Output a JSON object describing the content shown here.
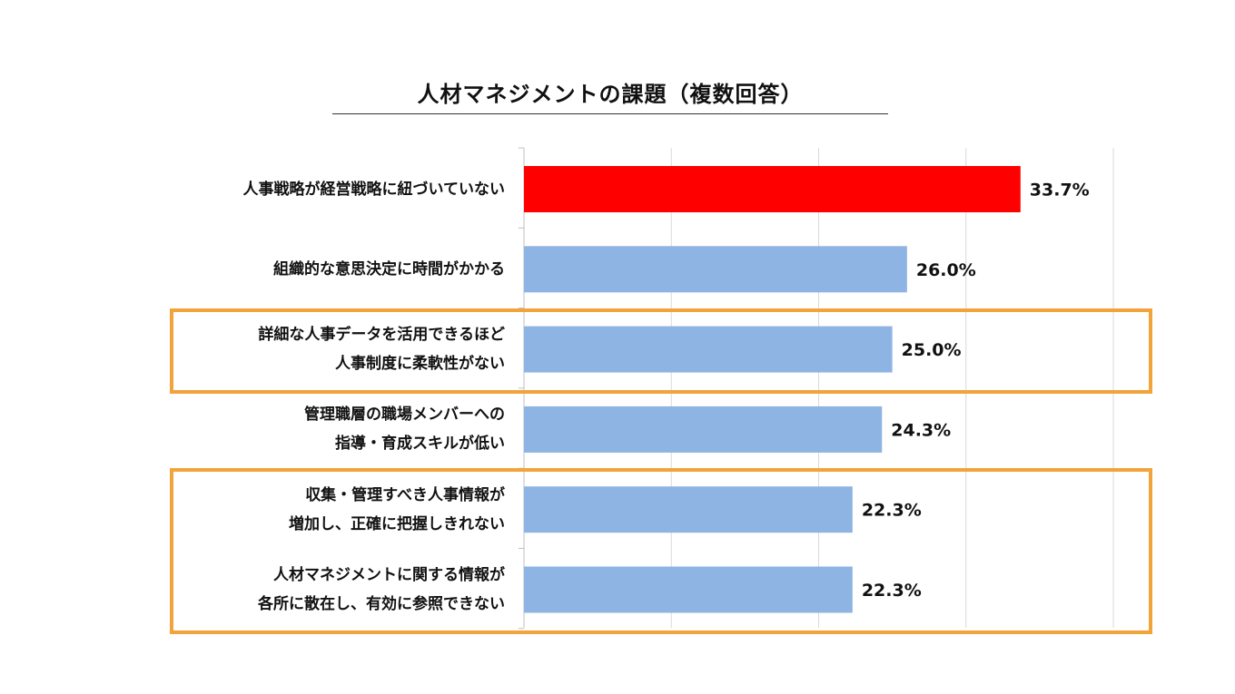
{
  "chart_data": {
    "type": "bar",
    "orientation": "horizontal",
    "title": "人材マネジメントの課題（複数回答）",
    "xlabel": "",
    "ylabel": "",
    "xlim": [
      0,
      40
    ],
    "grid": true,
    "categories": [
      [
        "人事戦略が経営戦略に紐づいていない"
      ],
      [
        "組織的な意思決定に時間がかかる"
      ],
      [
        "詳細な人事データを活用できるほど",
        "人事制度に柔軟性がない"
      ],
      [
        "管理職層の職場メンバーへの",
        "指導・育成スキルが低い"
      ],
      [
        "収集・管理すべき人事情報が",
        "増加し、正確に把握しきれない"
      ],
      [
        "人材マネジメントに関する情報が",
        "各所に散在し、有効に参照できない"
      ]
    ],
    "values": [
      33.7,
      26.0,
      25.0,
      24.3,
      22.3,
      22.3
    ],
    "value_labels": [
      "33.7%",
      "26.0%",
      "25.0%",
      "24.3%",
      "22.3%",
      "22.3%"
    ],
    "bar_colors": [
      "#FF0000",
      "#8EB4E3",
      "#8EB4E3",
      "#8EB4E3",
      "#8EB4E3",
      "#8EB4E3"
    ],
    "highlight_groups": [
      [
        2
      ],
      [
        4,
        5
      ]
    ],
    "highlight_color": "#F2A33A"
  }
}
